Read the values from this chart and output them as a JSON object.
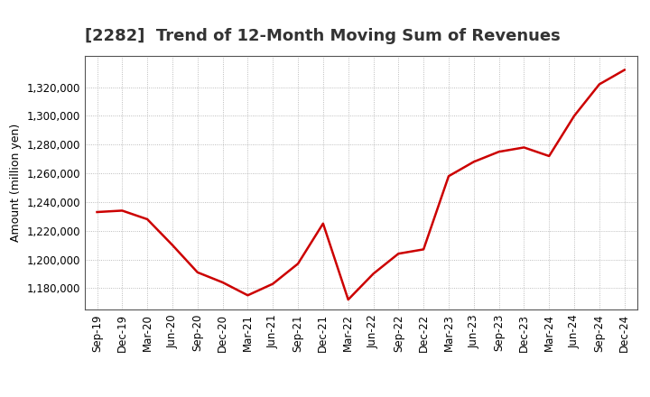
{
  "title": "[2282]  Trend of 12-Month Moving Sum of Revenues",
  "ylabel": "Amount (million yen)",
  "line_color": "#cc0000",
  "background_color": "#ffffff",
  "plot_bg_color": "#ffffff",
  "grid_color": "#aaaaaa",
  "x_labels": [
    "Sep-19",
    "Dec-19",
    "Mar-20",
    "Jun-20",
    "Sep-20",
    "Dec-20",
    "Mar-21",
    "Jun-21",
    "Sep-21",
    "Dec-21",
    "Mar-22",
    "Jun-22",
    "Sep-22",
    "Dec-22",
    "Mar-23",
    "Jun-23",
    "Sep-23",
    "Dec-23",
    "Mar-24",
    "Jun-24",
    "Sep-24",
    "Dec-24"
  ],
  "values": [
    1233000,
    1234000,
    1228000,
    1210000,
    1191000,
    1184000,
    1175000,
    1183000,
    1197000,
    1225000,
    1172000,
    1190000,
    1204000,
    1207000,
    1258000,
    1268000,
    1275000,
    1278000,
    1272000,
    1300000,
    1322000,
    1332000
  ],
  "ylim_min": 1165000,
  "ylim_max": 1342000,
  "ytick_values": [
    1180000,
    1200000,
    1220000,
    1240000,
    1260000,
    1280000,
    1300000,
    1320000
  ],
  "title_fontsize": 13,
  "label_fontsize": 9,
  "tick_fontsize": 8.5
}
